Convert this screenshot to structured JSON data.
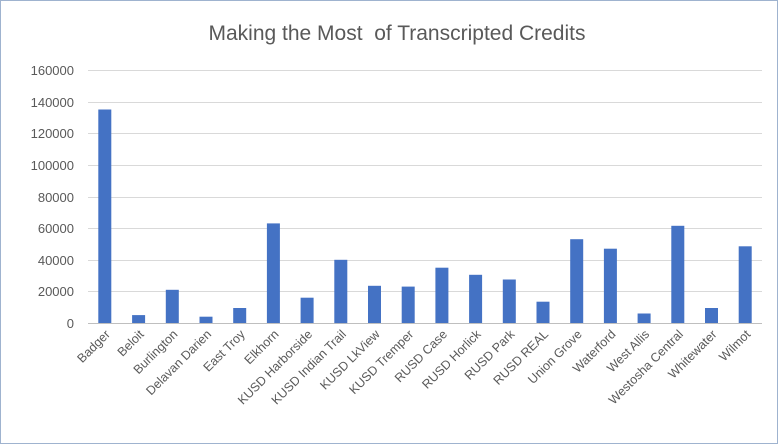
{
  "chart_data": {
    "type": "bar",
    "title": "Making the Most  of Transcripted Credits",
    "xlabel": "",
    "ylabel": "",
    "ylim": [
      0,
      160000
    ],
    "yticks": [
      0,
      20000,
      40000,
      60000,
      80000,
      100000,
      120000,
      140000,
      160000
    ],
    "grid": true,
    "legend": "none",
    "bar_color": "#4472c4",
    "categories": [
      "Badger",
      "Beloit",
      "Burlington",
      "Delavan Darien",
      "East Troy",
      "Elkhorn",
      "KUSD Harborside",
      "KUSD Indian Trail",
      "KUSD LkView",
      "KUSD Tremper",
      "RUSD Case",
      "RUSD Horlick",
      "RUSD Park",
      "RUSD REAL",
      "Union Grove",
      "Waterford",
      "West Allis",
      "Westosha Central",
      "Whitewater",
      "Wilmot"
    ],
    "values": [
      135000,
      5000,
      21000,
      4000,
      9500,
      63000,
      16000,
      40000,
      23500,
      23000,
      35000,
      30500,
      27500,
      13500,
      53000,
      47000,
      6000,
      61500,
      9500,
      48500
    ]
  }
}
